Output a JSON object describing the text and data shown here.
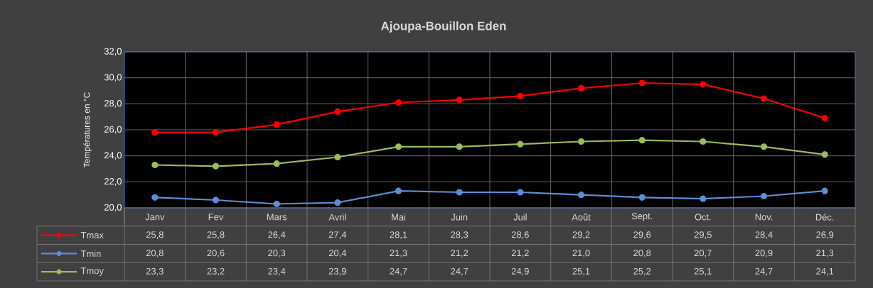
{
  "chart_data": {
    "type": "line",
    "title": "Ajoupa-Bouillon Eden",
    "ylabel": "Températures en °C",
    "categories": [
      "Janv",
      "Fev",
      "Mars",
      "Avril",
      "Mai",
      "Juin",
      "Juil",
      "Août",
      "Sept.",
      "Oct.",
      "Nov.",
      "Déc."
    ],
    "series": [
      {
        "name": "Tmax",
        "color": "#ff0000",
        "values": [
          25.8,
          25.8,
          26.4,
          27.4,
          28.1,
          28.3,
          28.6,
          29.2,
          29.6,
          29.5,
          28.4,
          26.9
        ],
        "value_labels": [
          "25,8",
          "25,8",
          "26,4",
          "27,4",
          "28,1",
          "28,3",
          "28,6",
          "29,2",
          "29,6",
          "29,5",
          "28,4",
          "26,9"
        ]
      },
      {
        "name": "Tmin",
        "color": "#5b8ed8",
        "values": [
          20.8,
          20.6,
          20.3,
          20.4,
          21.3,
          21.2,
          21.2,
          21.0,
          20.8,
          20.7,
          20.9,
          21.3
        ],
        "value_labels": [
          "20,8",
          "20,6",
          "20,3",
          "20,4",
          "21,3",
          "21,2",
          "21,2",
          "21,0",
          "20,8",
          "20,7",
          "20,9",
          "21,3"
        ]
      },
      {
        "name": "Tmoy",
        "color": "#9bbb59",
        "values": [
          23.3,
          23.2,
          23.4,
          23.9,
          24.7,
          24.7,
          24.9,
          25.1,
          25.2,
          25.1,
          24.7,
          24.1
        ],
        "value_labels": [
          "23,3",
          "23,2",
          "23,4",
          "23,9",
          "24,7",
          "24,7",
          "24,9",
          "25,1",
          "25,2",
          "25,1",
          "24,7",
          "24,1"
        ]
      }
    ],
    "ylim": [
      20,
      32
    ],
    "yticks": [
      {
        "value": 20,
        "label": "20,0"
      },
      {
        "value": 22,
        "label": "22,0"
      },
      {
        "value": 24,
        "label": "24,0"
      },
      {
        "value": 26,
        "label": "26,0"
      },
      {
        "value": 28,
        "label": "28,0"
      },
      {
        "value": 30,
        "label": "30,0"
      },
      {
        "value": 32,
        "label": "32,0"
      }
    ],
    "grid": true,
    "legend": "bottom",
    "marker": "circle",
    "line_style": "solid"
  }
}
